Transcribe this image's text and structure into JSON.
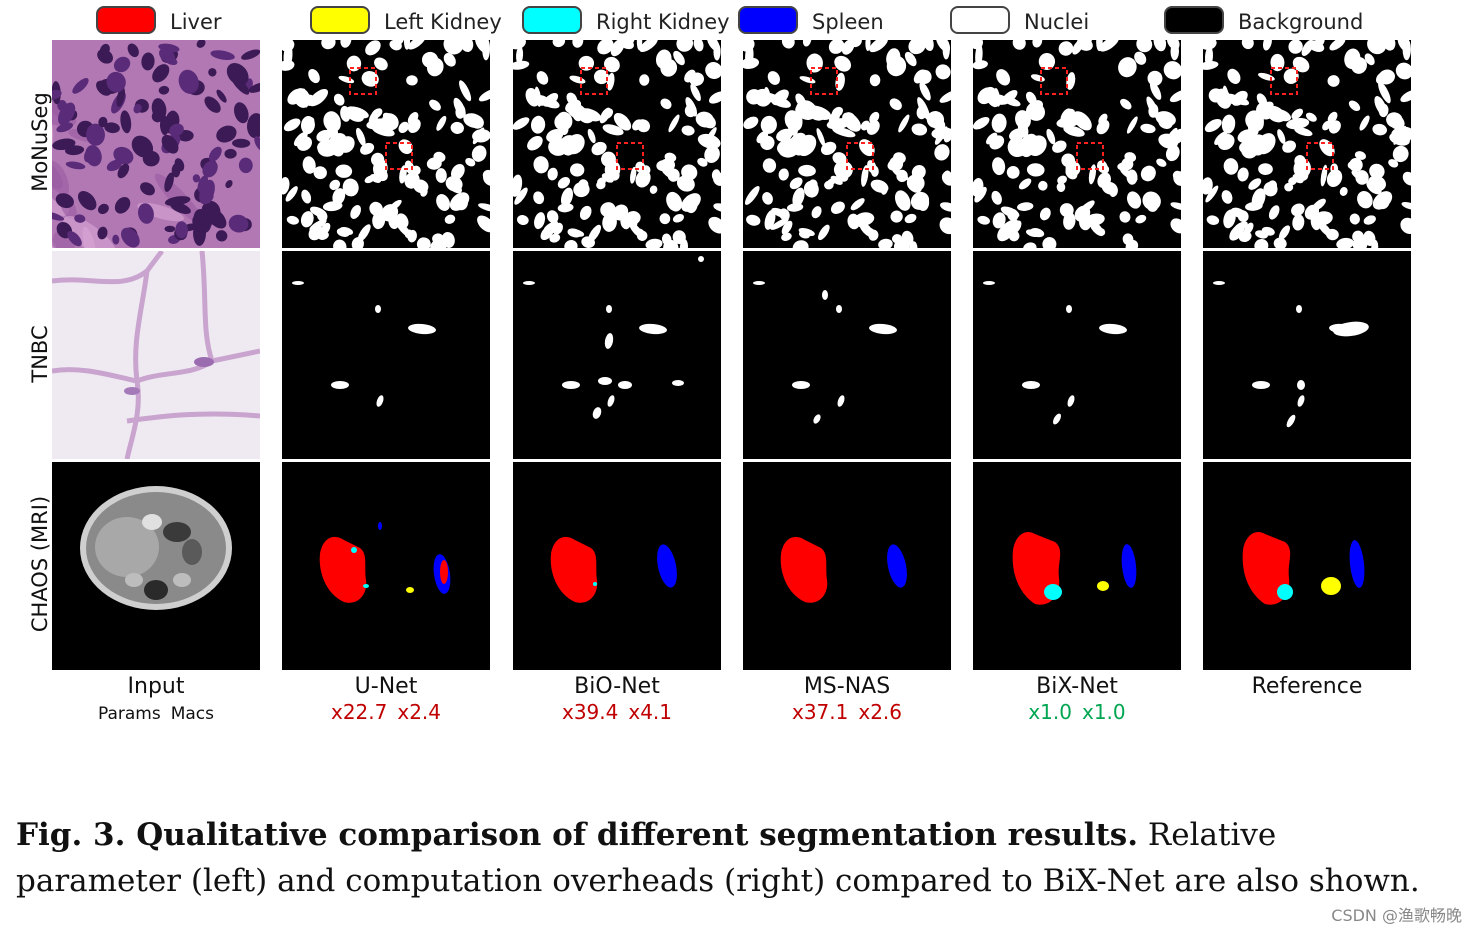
{
  "legend": [
    {
      "label": "Liver",
      "color": "#ff0000"
    },
    {
      "label": "Left Kidney",
      "color": "#ffff00"
    },
    {
      "label": "Right Kidney",
      "color": "#00ffff"
    },
    {
      "label": "Spleen",
      "color": "#0000ff"
    },
    {
      "label": "Nuclei",
      "color": "#ffffff"
    },
    {
      "label": "Background",
      "color": "#000000"
    }
  ],
  "rows": [
    "MoNuSeg",
    "TNBC",
    "CHAOS (MRI)"
  ],
  "columns": [
    {
      "name": "Input",
      "params": "Params",
      "macs": "Macs",
      "style": "black"
    },
    {
      "name": "U-Net",
      "params": "x22.7",
      "macs": "x2.4",
      "style": "red"
    },
    {
      "name": "BiO-Net",
      "params": "x39.4",
      "macs": "x4.1",
      "style": "red"
    },
    {
      "name": "MS-NAS",
      "params": "x37.1",
      "macs": "x2.6",
      "style": "red"
    },
    {
      "name": "BiX-Net",
      "params": "x1.0",
      "macs": "x1.0",
      "style": "green"
    },
    {
      "name": "Reference",
      "params": "",
      "macs": "",
      "style": "none"
    }
  ],
  "caption": {
    "bold": "Fig. 3. Qualitative comparison of different segmentation results.",
    "text": "Relative parameter (left) and computation overheads (right) compared to BiX-Net are also shown."
  },
  "watermark": "CSDN @渔歌畅晚",
  "colors": {
    "liver": "#ff0000",
    "left_kidney": "#ffff00",
    "right_kidney": "#00ffff",
    "spleen": "#0000ff",
    "nuclei": "#ffffff",
    "background": "#000000",
    "overhead_worse": "#c00000",
    "overhead_best": "#00a651"
  }
}
